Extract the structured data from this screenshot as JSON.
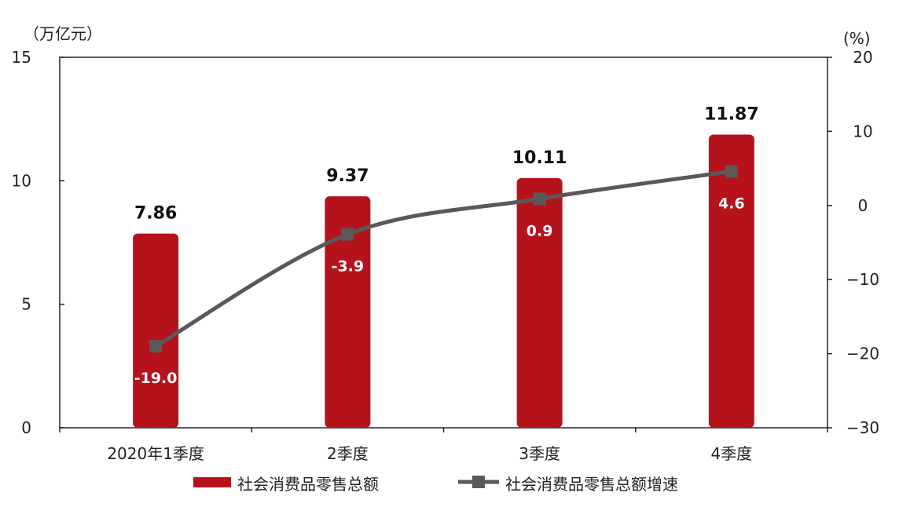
{
  "chart_data": {
    "type": "bar",
    "categories": [
      "2020年1季度",
      "2季度",
      "3季度",
      "4季度"
    ],
    "left_axis": {
      "unit": "（万亿元）",
      "ylim": [
        0,
        15
      ],
      "ticks": [
        0,
        5,
        10,
        15
      ]
    },
    "right_axis": {
      "unit": "(%)",
      "ylim": [
        -30,
        20
      ],
      "ticks": [
        -30,
        -20,
        -10,
        0,
        10,
        20
      ]
    },
    "series": [
      {
        "name": "社会消费品零售总额",
        "type": "bar",
        "axis": "left",
        "values": [
          7.86,
          9.37,
          10.11,
          11.87
        ],
        "labels": [
          "7.86",
          "9.37",
          "10.11",
          "11.87"
        ],
        "color": "#b5121b"
      },
      {
        "name": "社会消费品零售总额增速",
        "type": "line",
        "axis": "right",
        "values": [
          -19.0,
          -3.9,
          0.9,
          4.6
        ],
        "labels": [
          "-19.0",
          "-3.9",
          "0.9",
          "4.6"
        ],
        "color": "#595959"
      }
    ],
    "grid": false,
    "legend_position": "bottom"
  }
}
